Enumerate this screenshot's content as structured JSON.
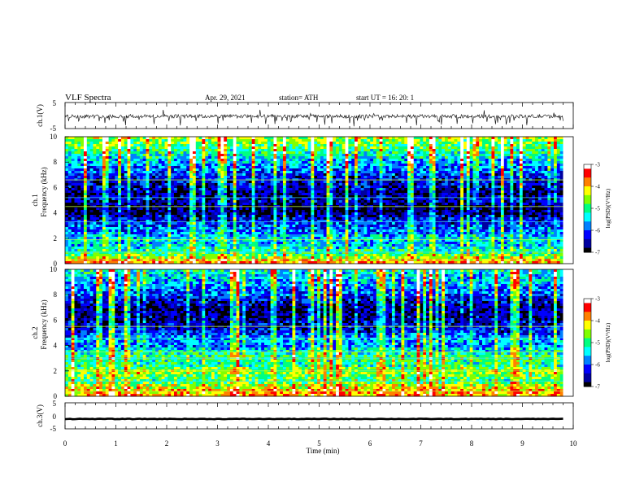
{
  "header": {
    "title": "VLF Spectra",
    "date": "Apr. 29, 2021",
    "station": "station= ATH",
    "start": "start  UT  =    16: 20: 1"
  },
  "colorbar": {
    "label": "log(PSD)(V²/Hz)",
    "ticks": [
      "-3",
      "-4",
      "-5",
      "-6",
      "-7"
    ],
    "range": [
      -7,
      -3
    ],
    "colors": [
      "#000000",
      "#0000a0",
      "#0000ff",
      "#0080ff",
      "#00ffff",
      "#00ff80",
      "#80ff00",
      "#ffff00",
      "#ff8000",
      "#ff0000",
      "#ffffff"
    ]
  },
  "chart_data": [
    {
      "type": "line",
      "name": "ch1-waveform",
      "ylabel": "ch.1(V)",
      "ylim": [
        -5,
        5
      ],
      "y_ticks": [
        "5",
        "-5"
      ],
      "x_range": [
        0,
        10
      ],
      "baseline": -0.3,
      "note_values": "noise around -0.3 V with spikes up to about -3 V"
    },
    {
      "type": "heatmap",
      "name": "ch1-spectrogram",
      "ylabel_line1": "ch.1",
      "ylabel_line2": "Frequency  (kHz)",
      "ylim": [
        0,
        10
      ],
      "y_ticks": [
        "0",
        "2",
        "4",
        "6",
        "8",
        "10"
      ],
      "x_range": [
        0,
        9.8
      ],
      "band_profile": [
        {
          "f": 0.2,
          "v": -3.8
        },
        {
          "f": 0.5,
          "v": -4.6
        },
        {
          "f": 1.0,
          "v": -5.2
        },
        {
          "f": 1.5,
          "v": -5.6
        },
        {
          "f": 2.0,
          "v": -5.4
        },
        {
          "f": 2.5,
          "v": -5.9
        },
        {
          "f": 3.0,
          "v": -6.1
        },
        {
          "f": 3.5,
          "v": -6.3
        },
        {
          "f": 4.0,
          "v": -6.9
        },
        {
          "f": 4.5,
          "v": -6.9
        },
        {
          "f": 5.0,
          "v": -6.4
        },
        {
          "f": 5.5,
          "v": -6.7
        },
        {
          "f": 6.0,
          "v": -6.5
        },
        {
          "f": 7.0,
          "v": -6.2
        },
        {
          "f": 8.0,
          "v": -5.6
        },
        {
          "f": 9.0,
          "v": -5.0
        },
        {
          "f": 10.0,
          "v": -4.5
        }
      ],
      "line_freqs": [
        0.3,
        0.9,
        1.9,
        3.3,
        4.5,
        5.2,
        6.6
      ]
    },
    {
      "type": "heatmap",
      "name": "ch2-spectrogram",
      "ylabel_line1": "ch.2",
      "ylabel_line2": "Frequency  (kHz)",
      "ylim": [
        0,
        10
      ],
      "y_ticks": [
        "0",
        "2",
        "4",
        "6",
        "8",
        "10"
      ],
      "x_range": [
        0,
        9.8
      ],
      "band_profile": [
        {
          "f": 0.2,
          "v": -3.9
        },
        {
          "f": 0.8,
          "v": -4.4
        },
        {
          "f": 1.2,
          "v": -5.0
        },
        {
          "f": 2.0,
          "v": -4.6
        },
        {
          "f": 2.5,
          "v": -5.2
        },
        {
          "f": 3.0,
          "v": -4.9
        },
        {
          "f": 3.5,
          "v": -5.3
        },
        {
          "f": 4.0,
          "v": -5.9
        },
        {
          "f": 4.5,
          "v": -5.6
        },
        {
          "f": 5.0,
          "v": -6.2
        },
        {
          "f": 6.0,
          "v": -6.6
        },
        {
          "f": 7.0,
          "v": -6.7
        },
        {
          "f": 8.0,
          "v": -6.1
        },
        {
          "f": 9.0,
          "v": -5.6
        },
        {
          "f": 10.0,
          "v": -5.3
        }
      ],
      "line_freqs": [
        0.4,
        1.2,
        2.0,
        3.0,
        3.5,
        4.6,
        5.5
      ]
    },
    {
      "type": "line",
      "name": "ch3-waveform",
      "ylabel": "ch.3(V)",
      "ylim": [
        -5,
        5
      ],
      "y_ticks": [
        "5",
        "0",
        "-5"
      ],
      "x_range": [
        0,
        9.8
      ],
      "baseline": -1.2
    }
  ],
  "x_axis": {
    "label": "Time  (min)",
    "range": [
      0,
      10
    ],
    "ticks": [
      "0",
      "1",
      "2",
      "3",
      "4",
      "5",
      "6",
      "7",
      "8",
      "9",
      "10"
    ]
  }
}
